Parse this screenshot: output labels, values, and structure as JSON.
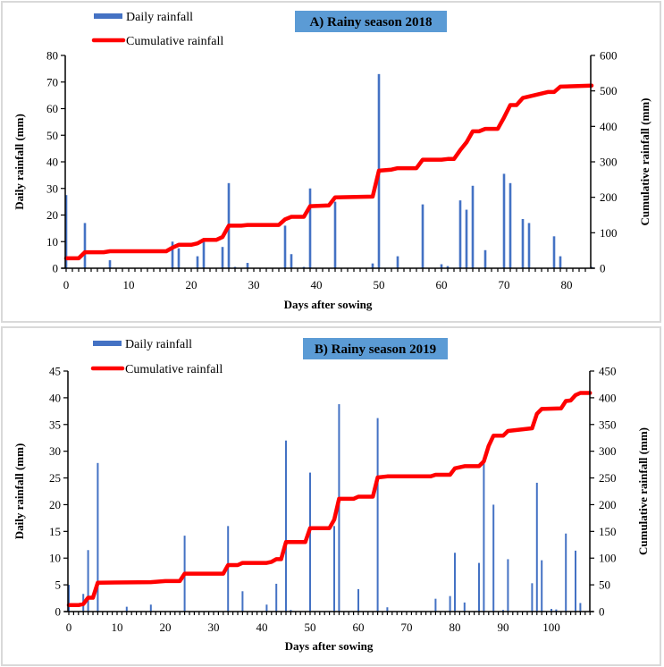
{
  "chart_data": [
    {
      "type": "bar",
      "title": "A) Rainy season 2018",
      "xlabel": "Days after sowing",
      "ylabel": "Daily rainfall (mm)",
      "y2label": "Cumulative rainfall (mm)",
      "xlim": [
        0,
        84
      ],
      "ylim": [
        0,
        80
      ],
      "y2lim": [
        0,
        600
      ],
      "xticks": [
        0,
        10,
        20,
        30,
        40,
        50,
        60,
        70,
        80
      ],
      "yticks": [
        0,
        10,
        20,
        30,
        40,
        50,
        60,
        70,
        80
      ],
      "y2ticks": [
        0,
        100,
        200,
        300,
        400,
        500,
        600
      ],
      "legend": [
        "Daily rainfall",
        "Cumulative rainfall"
      ],
      "legend_position": "top-left",
      "grid": false,
      "title_bg": "#5b9bd5",
      "series": [
        {
          "name": "Daily rainfall",
          "type": "bar",
          "color": "#4472c4",
          "x": [
            0,
            3,
            7,
            17,
            18,
            21,
            22,
            25,
            26,
            27,
            29,
            35,
            36,
            38,
            39,
            43,
            49,
            50,
            53,
            57,
            60,
            61,
            63,
            64,
            65,
            67,
            70,
            71,
            73,
            74,
            78,
            79,
            84
          ],
          "values": [
            27.5,
            17,
            3,
            10,
            7.5,
            4.5,
            10,
            8,
            32,
            0.5,
            2,
            16,
            5.3,
            0.5,
            30,
            25,
            1.8,
            73,
            4.5,
            24,
            1.5,
            0.8,
            25.5,
            22,
            31,
            6.8,
            35.5,
            32,
            18.5,
            17,
            12,
            4.5,
            0.5
          ]
        },
        {
          "name": "Cumulative rainfall",
          "type": "line",
          "axis": "right",
          "color": "#ff0000",
          "x": [
            0,
            2,
            3,
            6,
            7,
            16,
            17,
            18,
            20,
            21,
            22,
            24,
            25,
            26,
            28,
            29,
            34,
            35,
            36,
            38,
            39,
            42,
            43,
            49,
            50,
            52,
            53,
            56,
            57,
            60,
            61,
            62,
            63,
            64,
            65,
            66,
            67,
            69,
            70,
            71,
            72,
            73,
            77,
            78,
            79,
            84
          ],
          "values": [
            28,
            28,
            45,
            45,
            48,
            48,
            58,
            66,
            66,
            70,
            80,
            80,
            88,
            120,
            120,
            122,
            122,
            138,
            145,
            145,
            175,
            177,
            200,
            202,
            275,
            278,
            282,
            282,
            306,
            306,
            308,
            308,
            333,
            355,
            386,
            386,
            393,
            393,
            425,
            460,
            460,
            480,
            497,
            497,
            512,
            515
          ]
        }
      ]
    },
    {
      "type": "bar",
      "title": "B) Rainy season 2019",
      "xlabel": "Days after sowing",
      "ylabel": "Daily rainfall (mm)",
      "y2label": "Cumulative rainfall (mm)",
      "xlim": [
        0,
        108
      ],
      "ylim": [
        0,
        45
      ],
      "y2lim": [
        0,
        450
      ],
      "xticks": [
        0,
        10,
        20,
        30,
        40,
        50,
        60,
        70,
        80,
        90,
        100
      ],
      "yticks": [
        0,
        5,
        10,
        15,
        20,
        25,
        30,
        35,
        40,
        45
      ],
      "y2ticks": [
        0,
        50,
        100,
        150,
        200,
        250,
        300,
        350,
        400,
        450
      ],
      "legend": [
        "Daily rainfall",
        "Cumulative rainfall"
      ],
      "legend_position": "top-left",
      "grid": false,
      "title_bg": "#5b9bd5",
      "series": [
        {
          "name": "Daily rainfall",
          "type": "bar",
          "color": "#4472c4",
          "x": [
            0,
            3,
            4,
            6,
            12,
            17,
            24,
            33,
            36,
            41,
            43,
            45,
            46,
            50,
            55,
            56,
            60,
            64,
            66,
            76,
            79,
            80,
            82,
            85,
            86,
            88,
            90,
            91,
            96,
            97,
            98,
            100,
            101,
            103,
            105,
            106
          ],
          "values": [
            5,
            3.3,
            11.5,
            27.8,
            0.9,
            1.3,
            14.2,
            16,
            3.8,
            1.3,
            5.2,
            32,
            0.3,
            26,
            16,
            38.8,
            4.2,
            36.2,
            0.8,
            2.4,
            2.9,
            11,
            1.7,
            9.1,
            28.2,
            20,
            0.3,
            9.8,
            5.3,
            24.1,
            9.6,
            0.5,
            0.4,
            14.6,
            11.4,
            1.6
          ]
        },
        {
          "name": "Cumulative rainfall",
          "type": "line",
          "axis": "right",
          "color": "#ff0000",
          "x": [
            0,
            2,
            3,
            4,
            5,
            6,
            17,
            20,
            23,
            24,
            32,
            33,
            35,
            36,
            41,
            42,
            43,
            44,
            45,
            49,
            50,
            54,
            55,
            56,
            59,
            60,
            63,
            64,
            66,
            75,
            76,
            79,
            80,
            82,
            85,
            86,
            87,
            88,
            90,
            91,
            96,
            97,
            98,
            102,
            103,
            104,
            105,
            106,
            108
          ],
          "values": [
            12,
            12,
            14,
            26,
            26,
            54,
            55,
            57,
            57,
            71,
            71,
            87,
            87,
            91,
            91,
            93,
            98,
            98,
            130,
            130,
            156,
            156,
            172,
            211,
            211,
            215,
            215,
            251,
            253,
            253,
            256,
            256,
            268,
            272,
            272,
            281,
            310,
            329,
            329,
            338,
            343,
            370,
            379,
            380,
            394,
            395,
            405,
            409,
            409
          ]
        }
      ]
    }
  ]
}
